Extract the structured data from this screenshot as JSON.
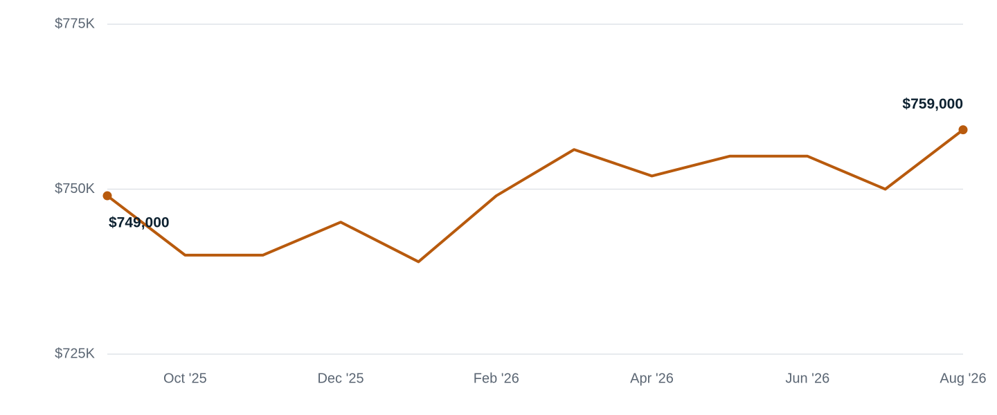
{
  "chart_data": {
    "type": "line",
    "x": [
      "Sep '25",
      "Oct '25",
      "Nov '25",
      "Dec '25",
      "Jan '26",
      "Feb '26",
      "Mar '26",
      "Apr '26",
      "May '26",
      "Jun '26",
      "Jul '26",
      "Aug '26"
    ],
    "x_tick_labels": [
      "Oct '25",
      "Dec '25",
      "Feb '26",
      "Apr '26",
      "Jun '26",
      "Aug '26"
    ],
    "series": [
      {
        "values": [
          749000,
          740000,
          740000,
          745000,
          739000,
          749000,
          756000,
          752000,
          755000,
          755000,
          750000,
          759000
        ],
        "color": "#b85a0d"
      }
    ],
    "ylim": [
      725000,
      775000
    ],
    "y_ticks": [
      725000,
      750000,
      775000
    ],
    "y_tick_labels": [
      "$725K",
      "$750K",
      "$775K"
    ],
    "data_labels": [
      {
        "index": 0,
        "text": "$749,000"
      },
      {
        "index": 11,
        "text": "$759,000"
      }
    ],
    "grid": true,
    "title": "",
    "xlabel": "",
    "ylabel": ""
  },
  "colors": {
    "line": "#b85a0d",
    "grid": "#dfe3e8",
    "axis_text": "#5b6673",
    "label_text": "#0d2130"
  }
}
